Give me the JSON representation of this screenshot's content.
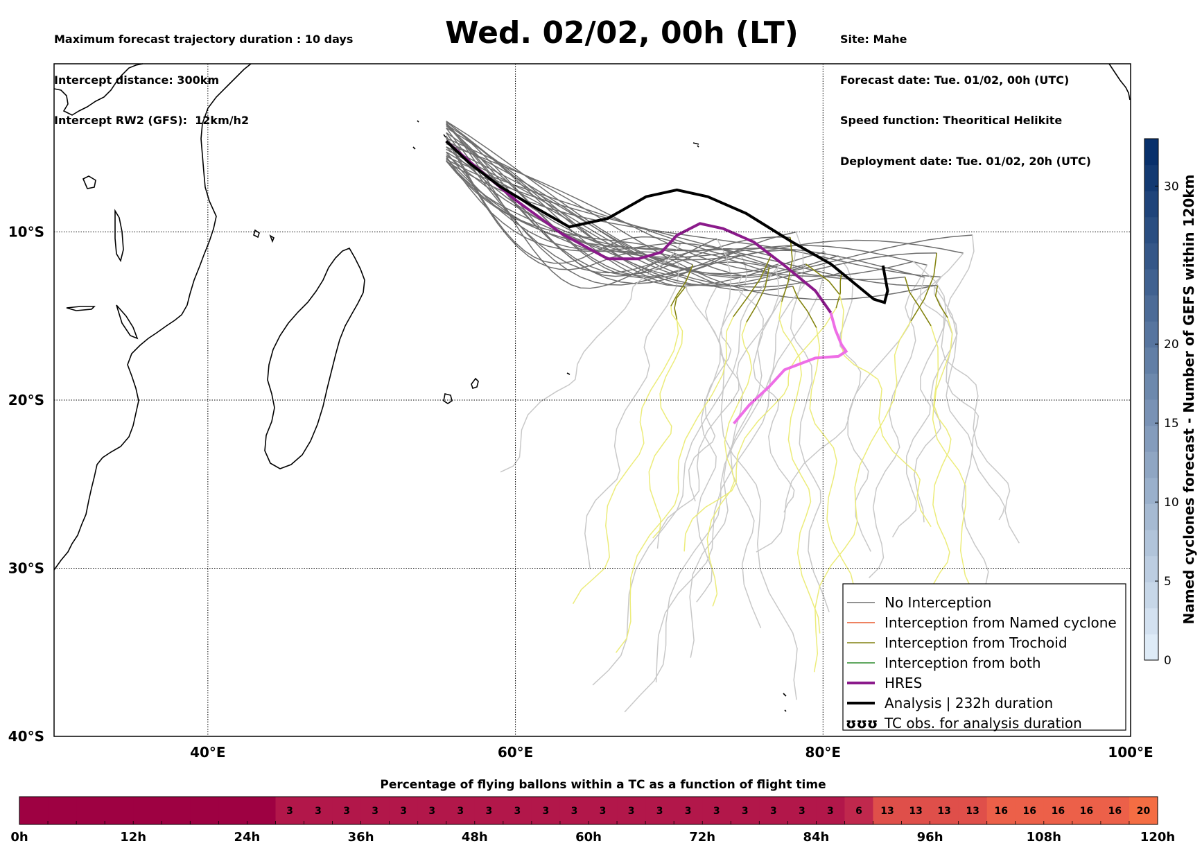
{
  "header": {
    "left_lines": [
      "Maximum forecast trajectory duration : 10 days",
      "Intercept distance: 300km",
      "Intercept RW2 (GFS):  12km/h2"
    ],
    "title": "Wed. 02/02, 00h (LT)",
    "right_lines": [
      "Site: Mahe",
      "Forecast date: Tue. 01/02, 00h (UTC)",
      "Speed function: Theoritical Helikite",
      "Deployment date: Tue. 01/02, 20h (UTC)"
    ]
  },
  "colors": {
    "no_interception": "#6e6e6e",
    "no_interception_late": "#c8c8c8",
    "named_cyclone": "#e8592d",
    "trochoid": "#808010",
    "trochoid_late": "#ecec7a",
    "both": "#2a8a2a",
    "hres": "#8b1a8b",
    "hres_late": "#ee6ee6",
    "analysis": "#000000",
    "flight_bar_low": "#9e0142",
    "flight_bar_mid": "#d53e4f",
    "flight_bar_high": "#f46d43",
    "colorbar_high": "#08306b",
    "colorbar_low": "#deebf7"
  },
  "chart_data": [
    {
      "type": "line",
      "title": "Wed. 02/02, 00h (LT)",
      "map": {
        "lon_range": [
          30,
          100
        ],
        "lat_range": [
          -40,
          0
        ],
        "lon_ticks": [
          40,
          60,
          80,
          100
        ],
        "lon_tick_labels": [
          "40°E",
          "60°E",
          "80°E",
          "100°E"
        ],
        "lat_ticks": [
          -10,
          -20,
          -30,
          -40
        ],
        "lat_tick_labels": [
          "10°S",
          "20°S",
          "30°S",
          "40°S"
        ],
        "grid": true
      },
      "legend": {
        "position": "lower-right",
        "entries": [
          {
            "label": "No Interception",
            "style": "no_interception"
          },
          {
            "label": "Interception from Named cyclone",
            "style": "named_cyclone"
          },
          {
            "label": "Interception from Trochoid",
            "style": "trochoid"
          },
          {
            "label": "Interception from both",
            "style": "both"
          },
          {
            "label": "HRES",
            "style": "hres"
          },
          {
            "label": "Analysis | 232h duration",
            "style": "analysis"
          },
          {
            "label": "TC obs. for analysis duration",
            "style": "tc_obs",
            "symbol": "ʊʊʊ"
          }
        ]
      },
      "series": [
        {
          "name": "HRES",
          "lon": [
            55.5,
            57.5,
            60,
            63,
            66,
            68,
            69.5,
            70.5,
            72,
            73.5,
            75.5,
            77.5,
            79.5,
            80.5,
            80.8,
            81.2,
            81.5,
            81,
            79.5,
            77.5,
            76.5,
            75.2,
            74.2
          ],
          "lat": [
            -4.6,
            -6.2,
            -8.1,
            -10.1,
            -11.6,
            -11.6,
            -11.2,
            -10.2,
            -9.5,
            -9.8,
            -10.6,
            -12,
            -13.5,
            -14.8,
            -15.8,
            -16.7,
            -17.1,
            -17.4,
            -17.5,
            -18.2,
            -19.2,
            -20.3,
            -21.4
          ]
        },
        {
          "name": "Analysis | 232h duration",
          "lon": [
            55.5,
            57,
            59,
            61,
            63.5,
            66,
            68.5,
            70.5,
            72.5,
            75,
            78,
            80.5,
            82.5,
            83.3,
            84,
            84.2,
            84.0,
            83.9
          ],
          "lat": [
            -4.6,
            -5.9,
            -7.3,
            -8.4,
            -9.7,
            -9.2,
            -7.9,
            -7.5,
            -7.9,
            -8.9,
            -10.6,
            -11.9,
            -13.4,
            -14.0,
            -14.2,
            -13.5,
            -12.5,
            -12.0
          ]
        }
      ]
    },
    {
      "type": "heatmap",
      "title": "Named cyclones forecast - Number of GEFS within 120km",
      "ylabel": "Named cyclones forecast - Number of GEFS within 120km",
      "ylim": [
        0,
        33
      ],
      "ticks": [
        0,
        5,
        10,
        15,
        20,
        30
      ],
      "levels": 20
    },
    {
      "type": "heatmap",
      "title": "Percentage of flying ballons within a TC as a function of flight time",
      "x_tick_labels": [
        "0h",
        "12h",
        "24h",
        "36h",
        "48h",
        "60h",
        "72h",
        "84h",
        "96h",
        "108h",
        "120h"
      ],
      "xlim": [
        0,
        120
      ],
      "cells_per_3h": [
        0,
        0,
        0,
        0,
        0,
        0,
        0,
        0,
        0,
        3,
        3,
        3,
        3,
        3,
        3,
        3,
        3,
        3,
        3,
        3,
        3,
        3,
        3,
        3,
        3,
        3,
        3,
        3,
        3,
        6,
        13,
        13,
        13,
        13,
        16,
        16,
        16,
        16,
        16,
        20
      ]
    }
  ]
}
